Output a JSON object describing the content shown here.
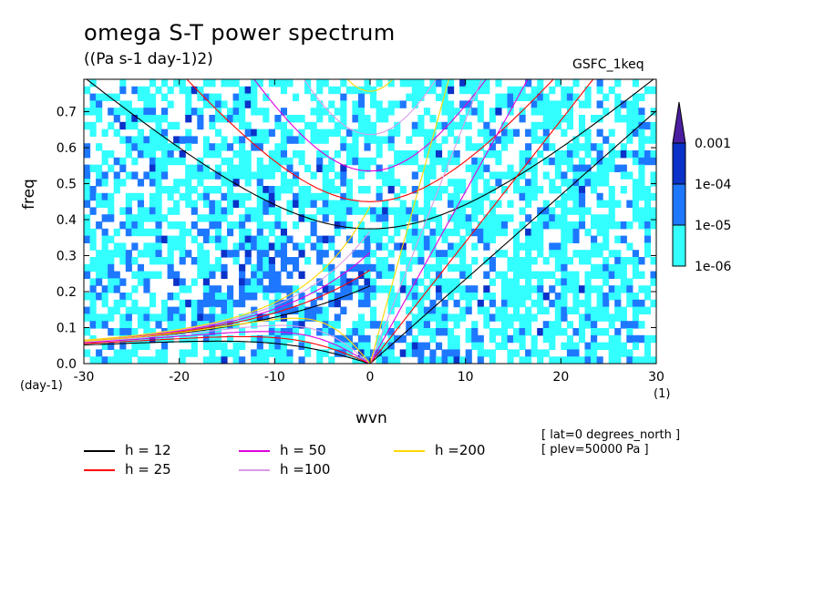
{
  "title": "omega S-T power spectrum",
  "subtitle": "((Pa s-1 day-1)2)",
  "run_label": "GSFC_1keq",
  "meta": [
    "[ lat=0 degrees_north ]",
    "[ plev=50000 Pa ]"
  ],
  "chart_data": {
    "type": "heatmap",
    "xlabel": "wvn",
    "ylabel": "freq",
    "x_unit": "(1)",
    "y_unit": "(day-1)",
    "xlim": [
      -30,
      30
    ],
    "ylim": [
      0,
      0.79
    ],
    "x_ticks": [
      "-30",
      "-20",
      "-10",
      "0",
      "10",
      "20",
      "30"
    ],
    "y_ticks": [
      "0.0",
      "0.1",
      "0.2",
      "0.3",
      "0.4",
      "0.5",
      "0.6",
      "0.7"
    ],
    "colorbar": {
      "levels": [
        "1e-06",
        "1e-05",
        "1e-04",
        "0.001"
      ],
      "colors": [
        "#33ffff",
        "#1e78ff",
        "#0a32c8",
        "#4b1ea0"
      ]
    },
    "dispersion_curves": [
      {
        "name": "h = 12",
        "h": 12,
        "color": "#000000"
      },
      {
        "name": "h = 25",
        "h": 25,
        "color": "#ff0000"
      },
      {
        "name": "h = 50",
        "h": 50,
        "color": "#dd00dd"
      },
      {
        "name": "h =100",
        "h": 100,
        "color": "#d79be6"
      },
      {
        "name": "h =200",
        "h": 200,
        "color": "#ffd700"
      }
    ]
  }
}
